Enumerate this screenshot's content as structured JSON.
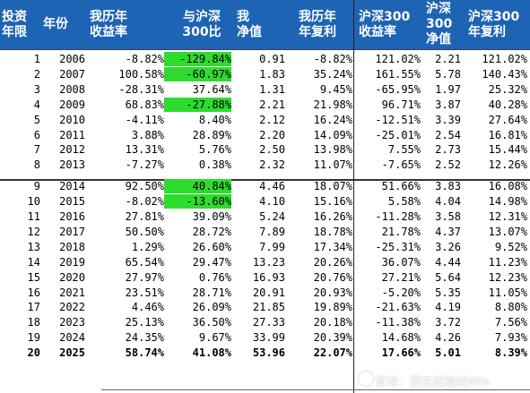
{
  "headers": [
    {
      "l1": "投资",
      "l2": "年限"
    },
    {
      "l1": "年份",
      "l2": ""
    },
    {
      "l1": "我历年",
      "l2": "收益率"
    },
    {
      "l1": "与沪深",
      "l2": "300比"
    },
    {
      "l1": "我",
      "l2": "净值"
    },
    {
      "l1": "我历年",
      "l2": "年复利"
    },
    {
      "l1": "沪深300",
      "l2": "收益率"
    },
    {
      "l1": "沪深",
      "l2": "300",
      "l3": "净值"
    },
    {
      "l1": "沪深300",
      "l2": "年复利"
    }
  ],
  "rows": [
    {
      "n": "1",
      "year": "2006",
      "ret": "-8.82%",
      "diff": "-129.84%",
      "diff_hl": true,
      "nav": "0.91",
      "cagr": "-8.82%",
      "hs_ret": "121.02%",
      "hs_nav": "2.21",
      "hs_cagr": "121.02%"
    },
    {
      "n": "2",
      "year": "2007",
      "ret": "100.58%",
      "diff": "-60.97%",
      "diff_hl": true,
      "nav": "1.83",
      "cagr": "35.24%",
      "hs_ret": "161.55%",
      "hs_nav": "5.78",
      "hs_cagr": "140.43%"
    },
    {
      "n": "3",
      "year": "2008",
      "ret": "-28.31%",
      "diff": "37.64%",
      "diff_hl": false,
      "nav": "1.31",
      "cagr": "9.45%",
      "hs_ret": "-65.95%",
      "hs_nav": "1.97",
      "hs_cagr": "25.32%"
    },
    {
      "n": "4",
      "year": "2009",
      "ret": "68.83%",
      "diff": "-27.88%",
      "diff_hl": true,
      "nav": "2.21",
      "cagr": "21.98%",
      "hs_ret": "96.71%",
      "hs_nav": "3.87",
      "hs_cagr": "40.28%"
    },
    {
      "n": "5",
      "year": "2010",
      "ret": "-4.11%",
      "diff": "8.40%",
      "diff_hl": false,
      "nav": "2.12",
      "cagr": "16.24%",
      "hs_ret": "-12.51%",
      "hs_nav": "3.39",
      "hs_cagr": "27.64%"
    },
    {
      "n": "6",
      "year": "2011",
      "ret": "3.88%",
      "diff": "28.89%",
      "diff_hl": false,
      "nav": "2.20",
      "cagr": "14.09%",
      "hs_ret": "-25.01%",
      "hs_nav": "2.54",
      "hs_cagr": "16.81%"
    },
    {
      "n": "7",
      "year": "2012",
      "ret": "13.31%",
      "diff": "5.76%",
      "diff_hl": false,
      "nav": "2.50",
      "cagr": "13.98%",
      "hs_ret": "7.55%",
      "hs_nav": "2.73",
      "hs_cagr": "15.44%"
    },
    {
      "n": "8",
      "year": "2013",
      "ret": "-7.27%",
      "diff": "0.38%",
      "diff_hl": false,
      "nav": "2.32",
      "cagr": "11.07%",
      "hs_ret": "-7.65%",
      "hs_nav": "2.52",
      "hs_cagr": "12.26%"
    },
    {
      "n": "9",
      "year": "2014",
      "ret": "92.50%",
      "diff": "40.84%",
      "diff_hl": true,
      "nav": "4.46",
      "cagr": "18.07%",
      "hs_ret": "51.66%",
      "hs_nav": "3.83",
      "hs_cagr": "16.08%"
    },
    {
      "n": "10",
      "year": "2015",
      "ret": "-8.02%",
      "diff": "-13.60%",
      "diff_hl": true,
      "nav": "4.10",
      "cagr": "15.16%",
      "hs_ret": "5.58%",
      "hs_nav": "4.04",
      "hs_cagr": "14.98%"
    },
    {
      "n": "11",
      "year": "2016",
      "ret": "27.81%",
      "diff": "39.09%",
      "diff_hl": false,
      "nav": "5.24",
      "cagr": "16.26%",
      "hs_ret": "-11.28%",
      "hs_nav": "3.58",
      "hs_cagr": "12.31%"
    },
    {
      "n": "12",
      "year": "2017",
      "ret": "50.50%",
      "diff": "28.72%",
      "diff_hl": false,
      "nav": "7.89",
      "cagr": "18.78%",
      "hs_ret": "21.78%",
      "hs_nav": "4.37",
      "hs_cagr": "13.07%"
    },
    {
      "n": "13",
      "year": "2018",
      "ret": "1.29%",
      "diff": "26.60%",
      "diff_hl": false,
      "nav": "7.99",
      "cagr": "17.34%",
      "hs_ret": "-25.31%",
      "hs_nav": "3.26",
      "hs_cagr": "9.52%"
    },
    {
      "n": "14",
      "year": "2019",
      "ret": "65.54%",
      "diff": "29.47%",
      "diff_hl": false,
      "nav": "13.23",
      "cagr": "20.26%",
      "hs_ret": "36.07%",
      "hs_nav": "4.44",
      "hs_cagr": "11.23%"
    },
    {
      "n": "15",
      "year": "2020",
      "ret": "27.97%",
      "diff": "0.76%",
      "diff_hl": false,
      "nav": "16.93",
      "cagr": "20.76%",
      "hs_ret": "27.21%",
      "hs_nav": "5.64",
      "hs_cagr": "12.23%"
    },
    {
      "n": "16",
      "year": "2021",
      "ret": "23.51%",
      "diff": "28.71%",
      "diff_hl": false,
      "nav": "20.91",
      "cagr": "20.93%",
      "hs_ret": "-5.20%",
      "hs_nav": "5.35",
      "hs_cagr": "11.05%"
    },
    {
      "n": "17",
      "year": "2022",
      "ret": "4.46%",
      "diff": "26.09%",
      "diff_hl": false,
      "nav": "21.85",
      "cagr": "19.89%",
      "hs_ret": "-21.63%",
      "hs_nav": "4.19",
      "hs_cagr": "8.80%"
    },
    {
      "n": "18",
      "year": "2023",
      "ret": "25.13%",
      "diff": "36.50%",
      "diff_hl": false,
      "nav": "27.33",
      "cagr": "20.18%",
      "hs_ret": "-11.38%",
      "hs_nav": "3.72",
      "hs_cagr": "7.56%"
    },
    {
      "n": "19",
      "year": "2024",
      "ret": "24.35%",
      "diff": "9.67%",
      "diff_hl": false,
      "nav": "33.99",
      "cagr": "20.39%",
      "hs_ret": "14.68%",
      "hs_nav": "4.26",
      "hs_cagr": "7.93%"
    },
    {
      "n": "20",
      "year": "2025",
      "ret": "58.74%",
      "diff": "41.08%",
      "diff_hl": false,
      "nav": "53.96",
      "cagr": "22.07%",
      "hs_ret": "17.66%",
      "hs_nav": "5.01",
      "hs_cagr": "8.39%",
      "bold": true
    }
  ],
  "watermark": "雪球：赢在起跑线Win",
  "colors": {
    "header_bg": "#1e64b4",
    "highlight": "#2edc2e"
  }
}
